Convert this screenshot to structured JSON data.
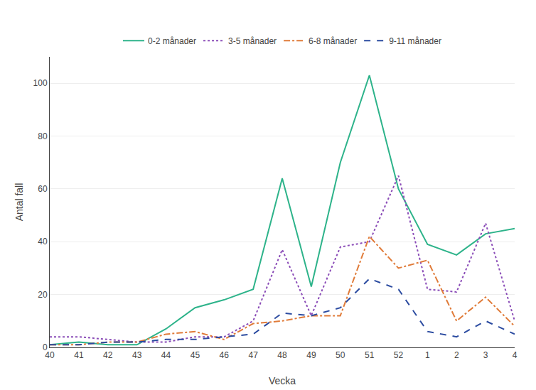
{
  "chart_data": {
    "type": "line",
    "xlabel": "Vecka",
    "ylabel": "Antal fall",
    "categories": [
      "40",
      "41",
      "42",
      "43",
      "44",
      "45",
      "46",
      "47",
      "48",
      "49",
      "50",
      "51",
      "52",
      "1",
      "2",
      "3",
      "4"
    ],
    "series": [
      {
        "name": "0-2 månader",
        "color": "#2db38a",
        "line_style": "solid",
        "values": [
          1,
          2,
          1,
          1,
          7,
          15,
          18,
          22,
          64,
          23,
          70,
          103,
          60,
          39,
          35,
          43,
          45
        ]
      },
      {
        "name": "3-5 månader",
        "color": "#8b4db8",
        "line_style": "dot",
        "values": [
          4,
          4,
          3,
          2,
          2,
          4,
          4,
          10,
          37,
          12,
          38,
          40,
          65,
          22,
          21,
          47,
          10
        ]
      },
      {
        "name": "6-8 månader",
        "color": "#e07b39",
        "line_style": "dashdot",
        "values": [
          1,
          1,
          2,
          2,
          5,
          6,
          3,
          9,
          10,
          12,
          12,
          42,
          30,
          33,
          10,
          19,
          8
        ]
      },
      {
        "name": "9-11 månader",
        "color": "#2b4ba0",
        "line_style": "dash",
        "values": [
          1,
          1,
          2,
          2,
          3,
          3,
          4,
          5,
          13,
          12,
          15,
          26,
          22,
          6,
          4,
          10,
          5
        ]
      }
    ],
    "ylim": [
      0,
      110
    ],
    "yticks": [
      0,
      20,
      40,
      60,
      80,
      100
    ],
    "grid": true,
    "legend": "top"
  }
}
